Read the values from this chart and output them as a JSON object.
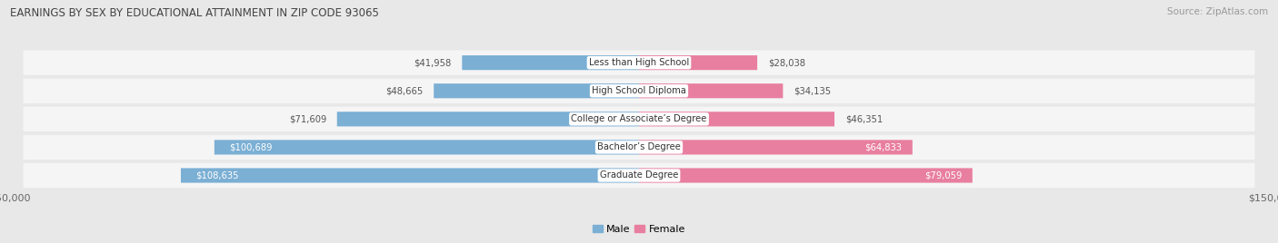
{
  "title": "EARNINGS BY SEX BY EDUCATIONAL ATTAINMENT IN ZIP CODE 93065",
  "source": "Source: ZipAtlas.com",
  "categories": [
    "Less than High School",
    "High School Diploma",
    "College or Associate’s Degree",
    "Bachelor’s Degree",
    "Graduate Degree"
  ],
  "male_values": [
    41958,
    48665,
    71609,
    100689,
    108635
  ],
  "female_values": [
    28038,
    34135,
    46351,
    64833,
    79059
  ],
  "male_color": "#7bafd4",
  "female_color": "#e87fa0",
  "max_value": 150000,
  "bg_color": "#e8e8e8",
  "row_bg_color": "#f5f5f5",
  "bar_height": 0.52,
  "figsize": [
    14.06,
    2.68
  ],
  "dpi": 100,
  "male_inside_threshold": 85000,
  "female_inside_threshold": 55000
}
